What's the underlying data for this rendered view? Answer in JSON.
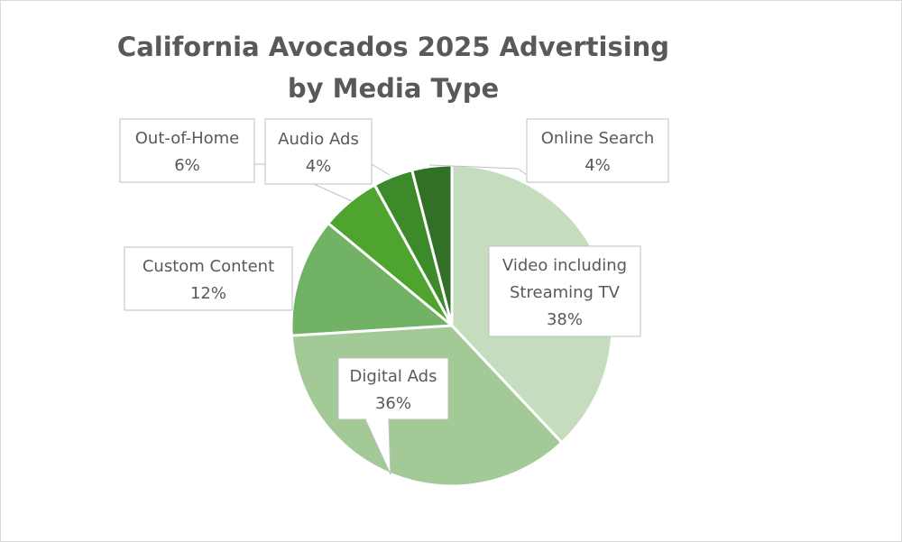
{
  "chart_data": {
    "type": "pie",
    "title_lines": [
      "California Avocados 2025 Advertising",
      "by Media Type"
    ],
    "slices": [
      {
        "label": "Video including Streaming TV",
        "label_lines": [
          "Video including",
          "Streaming TV"
        ],
        "percent_text": "38%",
        "value": 38,
        "color": "#c5dcbf"
      },
      {
        "label": "Digital Ads",
        "label_lines": [
          "Digital Ads"
        ],
        "percent_text": "36%",
        "value": 36,
        "color": "#a2c996"
      },
      {
        "label": "Custom Content",
        "label_lines": [
          "Custom Content"
        ],
        "percent_text": "12%",
        "value": 12,
        "color": "#72b264"
      },
      {
        "label": "Out-of-Home",
        "label_lines": [
          "Out-of-Home"
        ],
        "percent_text": "6%",
        "value": 6,
        "color": "#4ea42e"
      },
      {
        "label": "Audio Ads",
        "label_lines": [
          "Audio Ads"
        ],
        "percent_text": "4%",
        "value": 4,
        "color": "#3c8a2a"
      },
      {
        "label": "Online Search",
        "label_lines": [
          "Online Search"
        ],
        "percent_text": "4%",
        "value": 4,
        "color": "#327027"
      }
    ]
  }
}
